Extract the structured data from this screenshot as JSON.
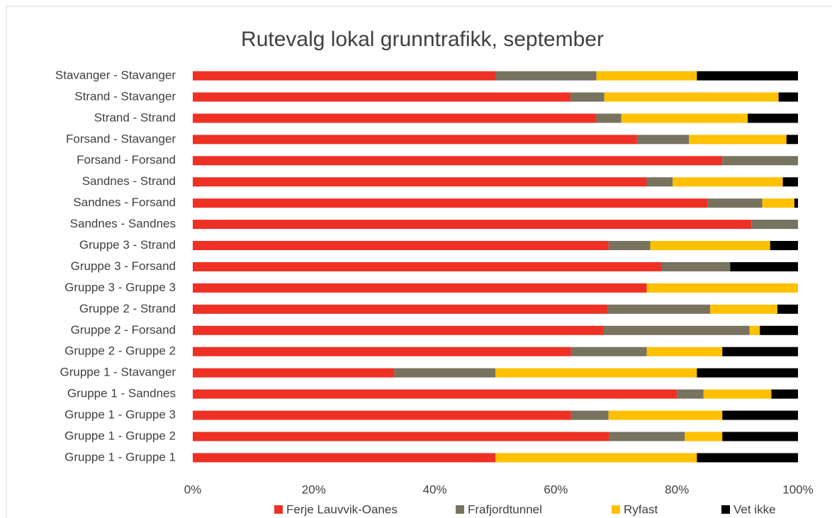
{
  "chart_data": {
    "type": "stacked_barh",
    "title": "Rutevalg lokal grunntrafikk, september",
    "categories": [
      "Stavanger - Stavanger",
      "Strand - Stavanger",
      "Strand - Strand",
      "Forsand - Stavanger",
      "Forsand - Forsand",
      "Sandnes - Strand",
      "Sandnes - Forsand",
      "Sandnes - Sandnes",
      "Gruppe 3 - Strand",
      "Gruppe 3 - Forsand",
      "Gruppe 3 - Gruppe 3",
      "Gruppe 2 - Strand",
      "Gruppe 2 - Forsand",
      "Gruppe 2 - Gruppe 2",
      "Gruppe 1 - Stavanger",
      "Gruppe 1 - Sandnes",
      "Gruppe 1 - Gruppe 3",
      "Gruppe 1 - Gruppe 2",
      "Gruppe 1 - Gruppe 1"
    ],
    "series": [
      {
        "name": "Ferje Lauvvik-Oanes",
        "color": "#ee3124",
        "values": [
          50,
          62.4,
          66.7,
          73.4,
          87.5,
          75,
          85.1,
          92.3,
          68.7,
          77.4,
          75,
          68.6,
          67.8,
          62.5,
          33.3,
          80,
          62.5,
          68.8,
          50
        ]
      },
      {
        "name": "Frafjordtunnel",
        "color": "#77735f",
        "values": [
          16.7,
          5.6,
          4.1,
          8.6,
          12.5,
          4.3,
          9,
          7.7,
          6.9,
          11.4,
          0,
          16.9,
          24.2,
          12.5,
          16.7,
          4.4,
          6.2,
          12.5,
          0
        ]
      },
      {
        "name": "Ryfast",
        "color": "#ffc000",
        "values": [
          16.6,
          28.8,
          20.9,
          16.1,
          0,
          18.2,
          5.3,
          0,
          19.8,
          0,
          25,
          11.1,
          1.7,
          12.5,
          33.3,
          11.2,
          18.8,
          6.2,
          33.3
        ]
      },
      {
        "name": "Vet ikke",
        "color": "#000000",
        "values": [
          16.7,
          3.2,
          8.3,
          1.9,
          0,
          2.5,
          0.6,
          0,
          4.6,
          11.2,
          0,
          3.4,
          6.3,
          12.5,
          16.7,
          4.4,
          12.5,
          12.5,
          16.7
        ]
      }
    ],
    "xlim": [
      0,
      100
    ],
    "xticks": [
      {
        "value": 0,
        "label": "0%"
      },
      {
        "value": 20,
        "label": "20%"
      },
      {
        "value": 40,
        "label": "40%"
      },
      {
        "value": 60,
        "label": "60%"
      },
      {
        "value": 80,
        "label": "80%"
      },
      {
        "value": 100,
        "label": "100%"
      }
    ],
    "grid": false,
    "legend": "bottom"
  }
}
